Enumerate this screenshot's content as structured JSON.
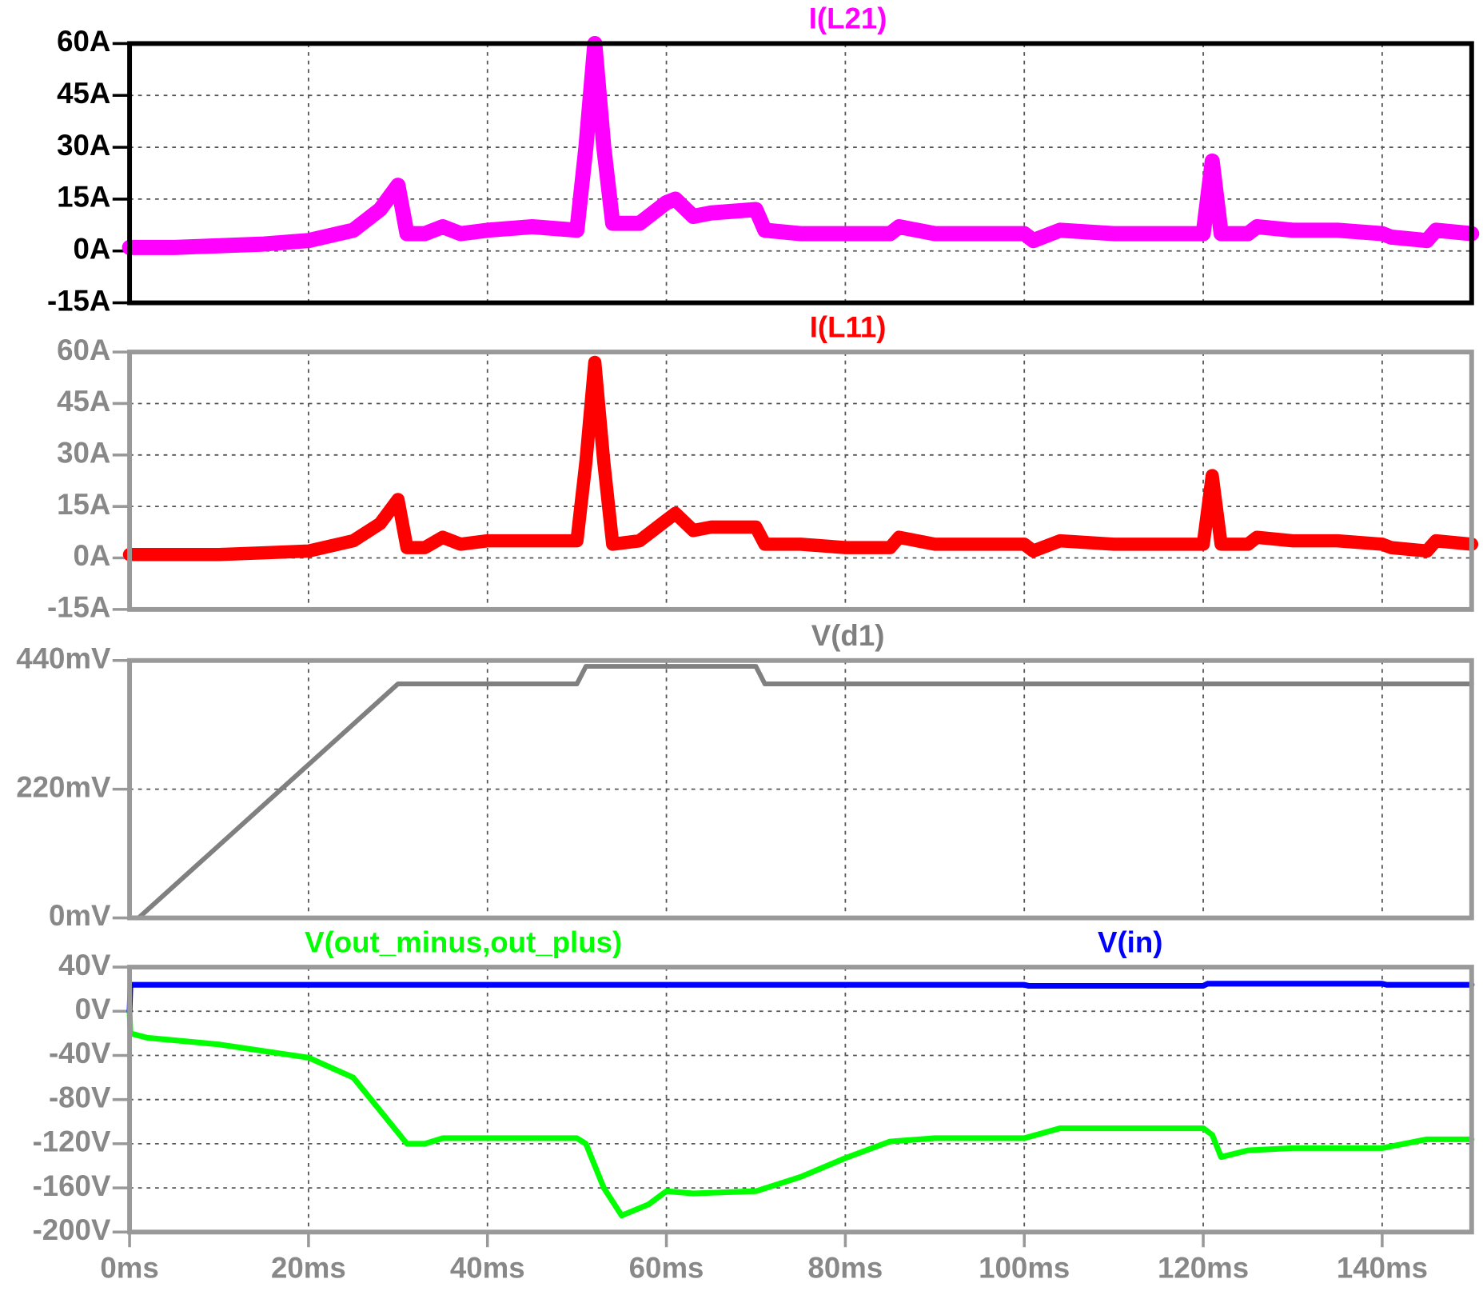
{
  "chart_data": [
    {
      "type": "line",
      "title": "I(L21)",
      "frame_color": "#000000",
      "ylim": [
        -15,
        60
      ],
      "yticks": [
        {
          "value": -15,
          "label": "-15A"
        },
        {
          "value": 0,
          "label": "0A"
        },
        {
          "value": 15,
          "label": "15A"
        },
        {
          "value": 30,
          "label": "30A"
        },
        {
          "value": 45,
          "label": "45A"
        },
        {
          "value": 60,
          "label": "60A"
        }
      ],
      "series": [
        {
          "name": "I(L21)",
          "color": "#ff00ff",
          "x": [
            0,
            5,
            10,
            15,
            20,
            25,
            28,
            30,
            31,
            33,
            35,
            37,
            40,
            45,
            50,
            51,
            52,
            53,
            54,
            57,
            60,
            61,
            63,
            65,
            70,
            71,
            75,
            80,
            85,
            86,
            90,
            95,
            100,
            101,
            104,
            110,
            120,
            121,
            122,
            125,
            126,
            130,
            135,
            140,
            141,
            145,
            146,
            150
          ],
          "values": [
            1,
            1,
            1.5,
            2,
            3,
            6,
            12,
            19,
            5,
            5,
            7,
            5,
            6,
            7,
            6,
            30,
            60,
            30,
            8,
            8,
            14,
            15,
            10,
            11,
            12,
            6,
            5,
            5,
            5,
            7,
            5,
            5,
            5,
            3,
            6,
            5,
            5,
            26,
            5,
            5,
            7,
            6,
            6,
            5,
            4,
            3,
            6,
            5
          ]
        }
      ]
    },
    {
      "type": "line",
      "title": "I(L11)",
      "frame_color": "#999999",
      "ylim": [
        -15,
        60
      ],
      "yticks": [
        {
          "value": -15,
          "label": "-15A"
        },
        {
          "value": 0,
          "label": "0A"
        },
        {
          "value": 15,
          "label": "15A"
        },
        {
          "value": 30,
          "label": "30A"
        },
        {
          "value": 45,
          "label": "45A"
        },
        {
          "value": 60,
          "label": "60A"
        }
      ],
      "series": [
        {
          "name": "I(L11)",
          "color": "#ff0000",
          "x": [
            0,
            5,
            10,
            15,
            20,
            25,
            28,
            30,
            31,
            33,
            35,
            37,
            40,
            45,
            50,
            51,
            52,
            53,
            54,
            57,
            60,
            61,
            63,
            65,
            70,
            71,
            75,
            80,
            85,
            86,
            90,
            95,
            100,
            101,
            104,
            110,
            120,
            121,
            122,
            125,
            126,
            130,
            135,
            140,
            141,
            145,
            146,
            150
          ],
          "values": [
            1,
            1,
            1,
            1.5,
            2,
            5,
            10,
            17,
            3,
            3,
            6,
            4,
            5,
            5,
            5,
            28,
            57,
            28,
            4,
            5,
            11,
            13,
            8,
            9,
            9,
            4,
            4,
            3,
            3,
            6,
            4,
            4,
            4,
            2,
            5,
            4,
            4,
            24,
            4,
            4,
            6,
            5,
            5,
            4,
            3,
            2,
            5,
            4
          ]
        }
      ]
    },
    {
      "type": "line",
      "title": "V(d1)",
      "frame_color": "#999999",
      "ylim": [
        0,
        440
      ],
      "yticks": [
        {
          "value": 0,
          "label": "0mV"
        },
        {
          "value": 220,
          "label": "220mV"
        },
        {
          "value": 440,
          "label": "440mV"
        }
      ],
      "series": [
        {
          "name": "V(d1)",
          "color": "#808080",
          "x": [
            0,
            1,
            30,
            50,
            51,
            70,
            71,
            150
          ],
          "values": [
            0,
            0,
            400,
            400,
            430,
            430,
            400,
            400
          ]
        }
      ]
    },
    {
      "type": "line",
      "frame_color": "#999999",
      "ylim": [
        -200,
        40
      ],
      "yticks": [
        {
          "value": -200,
          "label": "-200V"
        },
        {
          "value": -160,
          "label": "-160V"
        },
        {
          "value": -120,
          "label": "-120V"
        },
        {
          "value": -80,
          "label": "-80V"
        },
        {
          "value": -40,
          "label": "-40V"
        },
        {
          "value": 0,
          "label": "0V"
        },
        {
          "value": 40,
          "label": "40V"
        }
      ],
      "xlim": [
        0,
        150
      ],
      "xticks": [
        {
          "value": 0,
          "label": "0ms"
        },
        {
          "value": 20,
          "label": "20ms"
        },
        {
          "value": 40,
          "label": "40ms"
        },
        {
          "value": 60,
          "label": "60ms"
        },
        {
          "value": 80,
          "label": "80ms"
        },
        {
          "value": 100,
          "label": "100ms"
        },
        {
          "value": 120,
          "label": "120ms"
        },
        {
          "value": 140,
          "label": "140ms"
        }
      ],
      "series": [
        {
          "name": "V(out_minus,out_plus)",
          "color": "#00ff00",
          "x": [
            0,
            0.1,
            2,
            10,
            20,
            25,
            28,
            31,
            33,
            35,
            40,
            50,
            51,
            53,
            55,
            58,
            60,
            63,
            70,
            75,
            80,
            85,
            90,
            100,
            104,
            110,
            120,
            121,
            122,
            125,
            130,
            140,
            145,
            150
          ],
          "values": [
            0,
            -20,
            -24,
            -30,
            -42,
            -60,
            -90,
            -120,
            -120,
            -115,
            -115,
            -115,
            -120,
            -160,
            -185,
            -175,
            -163,
            -165,
            -163,
            -150,
            -133,
            -118,
            -115,
            -115,
            -106,
            -106,
            -106,
            -112,
            -132,
            -126,
            -124,
            -124,
            -116,
            -116
          ]
        },
        {
          "name": "V(in)",
          "color": "#0000ff",
          "x": [
            0,
            0.1,
            100,
            100.5,
            120,
            120.5,
            140,
            140.5,
            150
          ],
          "values": [
            0,
            24,
            24,
            23,
            23,
            25,
            25,
            24,
            24
          ]
        }
      ]
    }
  ]
}
